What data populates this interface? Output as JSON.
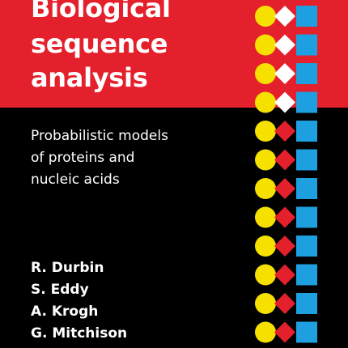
{
  "cover": {
    "title_lines": [
      "Biological",
      "sequence",
      "analysis"
    ],
    "subtitle_lines": [
      "Probabilistic models",
      "of proteins and",
      "nucleic acids"
    ],
    "authors": [
      "R. Durbin",
      "S. Eddy",
      "A. Krogh",
      "G. Mitchison"
    ]
  },
  "colors": {
    "band": "#e4202c",
    "background": "#000000",
    "circle": "#f5e000",
    "diamond_top": "#ffffff",
    "diamond_bottom": "#e4202c",
    "square": "#1e9fe0"
  },
  "motif": {
    "icons": [
      "circle-icon",
      "diamond-icon",
      "square-icon"
    ],
    "white_diamond_rows": 4,
    "red_diamond_rows": 8
  }
}
